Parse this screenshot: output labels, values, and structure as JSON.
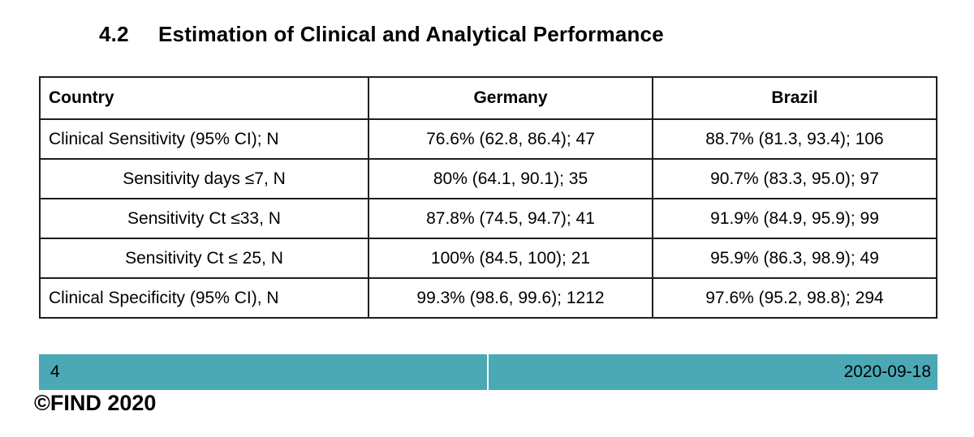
{
  "heading": {
    "number": "4.2",
    "title": "Estimation of Clinical and Analytical Performance"
  },
  "table": {
    "headers": [
      "Country",
      "Germany",
      "Brazil"
    ],
    "rows": [
      {
        "label": "Clinical Sensitivity (95% CI); N",
        "germany": "76.6% (62.8, 86.4); 47",
        "brazil": "88.7% (81.3, 93.4); 106"
      },
      {
        "label": "Sensitivity days ≤7, N",
        "germany": "80% (64.1, 90.1); 35",
        "brazil": "90.7% (83.3, 95.0); 97"
      },
      {
        "label": "Sensitivity Ct ≤33, N",
        "germany": "87.8% (74.5, 94.7); 41",
        "brazil": "91.9% (84.9, 95.9); 99"
      },
      {
        "label": "Sensitivity Ct ≤ 25, N",
        "germany": "100% (84.5, 100); 21",
        "brazil": "95.9% (86.3, 98.9); 49"
      },
      {
        "label": "Clinical Specificity (95% CI), N",
        "germany": "99.3% (98.6, 99.6); 1212",
        "brazil": "97.6% (95.2, 98.8); 294"
      }
    ]
  },
  "footer": {
    "page_number": "4",
    "date": "2020-09-18",
    "copyright": "©FIND 2020",
    "bar_color": "#4AA9B4"
  }
}
